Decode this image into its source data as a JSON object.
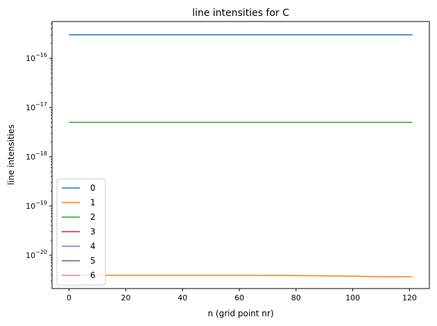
{
  "chart_data": {
    "type": "line",
    "title": "line intensities for C",
    "xlabel": "n (grid point nr)",
    "ylabel": "line intensities",
    "xlim": [
      -6,
      127
    ],
    "ylim": [
      2.1e-21,
      5.6e-16
    ],
    "yscale": "log",
    "grid": false,
    "legend_position": "lower left",
    "xticks": [
      0,
      20,
      40,
      60,
      80,
      100,
      120
    ],
    "yticks": [
      {
        "value": 1e-20,
        "label": "10^-20"
      },
      {
        "value": 1e-19,
        "label": "10^-19"
      },
      {
        "value": 1e-18,
        "label": "10^-18"
      },
      {
        "value": 1e-17,
        "label": "10^-17"
      },
      {
        "value": 1e-16,
        "label": "10^-16"
      }
    ],
    "series": [
      {
        "name": "0",
        "color": "#1f77b4",
        "x": [
          0,
          121
        ],
        "y": [
          3e-16,
          3e-16
        ]
      },
      {
        "name": "1",
        "color": "#ff7f0e",
        "x": [
          0,
          20,
          40,
          60,
          80,
          90,
          100,
          110,
          121
        ],
        "y": [
          3.9e-21,
          3.9e-21,
          3.9e-21,
          3.9e-21,
          3.85e-21,
          3.8e-21,
          3.75e-21,
          3.65e-21,
          3.65e-21
        ]
      },
      {
        "name": "2",
        "color": "#2ca02c",
        "x": [
          0,
          121
        ],
        "y": [
          5e-18,
          5e-18
        ]
      },
      {
        "name": "3",
        "color": "#d62728",
        "x": [],
        "y": []
      },
      {
        "name": "4",
        "color": "#9467bd",
        "x": [],
        "y": []
      },
      {
        "name": "5",
        "color": "#8c564b",
        "x": [],
        "y": []
      },
      {
        "name": "6",
        "color": "#e377c2",
        "x": [],
        "y": []
      }
    ]
  }
}
